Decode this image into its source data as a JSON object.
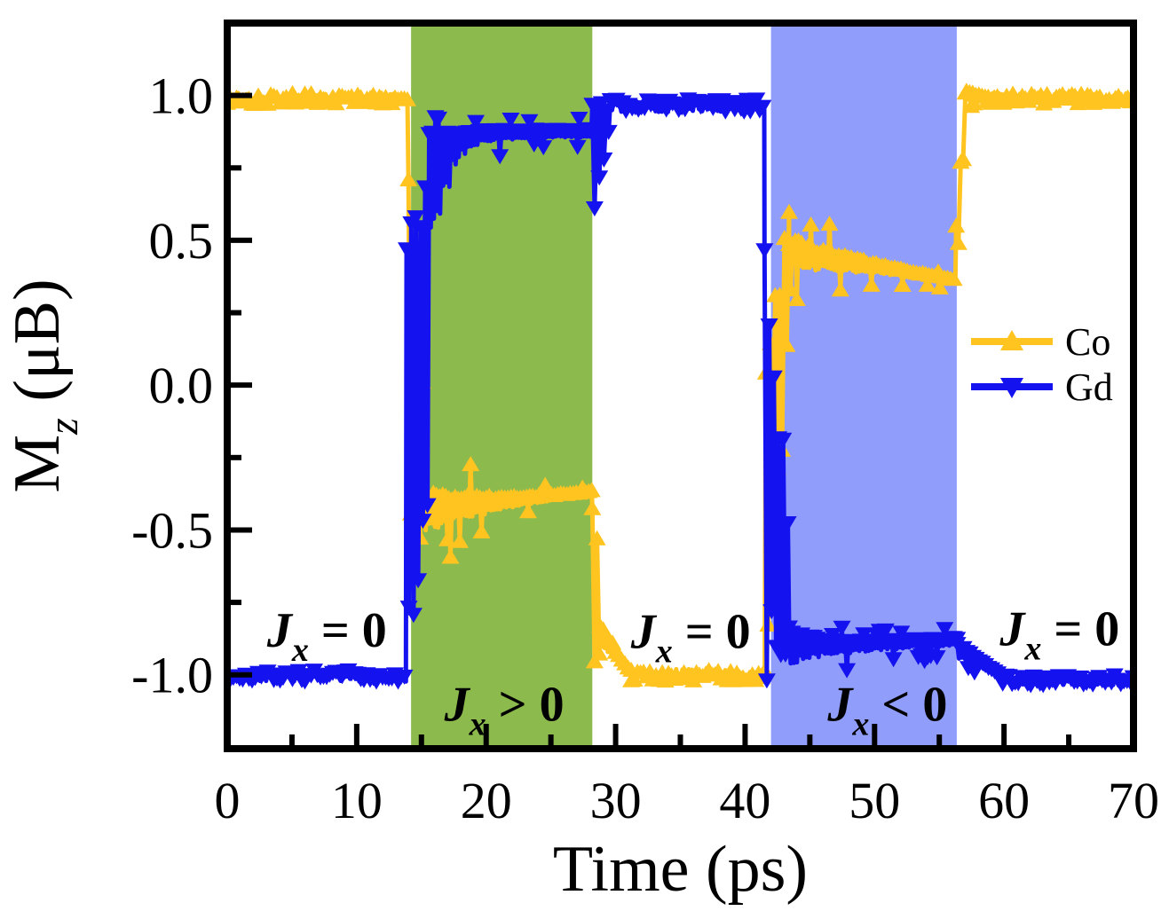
{
  "figure_name": "magnetization-vs-time-switching-plot",
  "chart_data": {
    "type": "line",
    "title": "",
    "xlabel": "Time (ps)",
    "ylabel": "Mz (uB)",
    "x_axis": {
      "range": [
        0,
        70
      ],
      "ticks": [
        0,
        10,
        20,
        30,
        40,
        50,
        60,
        70
      ],
      "tick_labels": [
        "0",
        "10",
        "20",
        "30",
        "40",
        "50",
        "60",
        "70"
      ],
      "minor_ticks": [
        5,
        15,
        25,
        35,
        45,
        55,
        65
      ],
      "title_parts": [
        {
          "text": "Time (ps)",
          "style": "plain"
        }
      ]
    },
    "y_axis": {
      "range": [
        -1.255,
        1.25
      ],
      "ticks": [
        -1.0,
        -0.5,
        0.0,
        0.5,
        1.0
      ],
      "tick_labels": [
        "-1.0",
        "-0.5",
        "0.0",
        "0.5",
        "1.0"
      ],
      "minor_ticks": [
        -0.75,
        -0.25,
        0.25,
        0.75
      ],
      "title_parts": [
        {
          "text": "M",
          "style": "plain"
        },
        {
          "text": "z",
          "style": "sub"
        },
        {
          "text": " (μB)",
          "style": "plain"
        }
      ]
    },
    "grid": false,
    "legend_position": "right-middle",
    "legend": {
      "entries": [
        {
          "label": "Co",
          "series": "Co"
        },
        {
          "label": "Gd",
          "series": "Gd"
        }
      ]
    },
    "regions": [
      {
        "name": "jx-positive-pulse",
        "t": [
          14.2,
          28.2
        ],
        "color": "#8CBA4D"
      },
      {
        "name": "jx-negative-pulse",
        "t": [
          42.0,
          56.35
        ],
        "color": "#909DFA"
      }
    ],
    "annotations": [
      {
        "name": "jx-zero-1",
        "t": 7.7,
        "v": -0.845,
        "parts": [
          {
            "text": "J",
            "style": "italic"
          },
          {
            "text": "x",
            "style": "sub"
          },
          {
            "text": " = 0",
            "style": "plain"
          }
        ]
      },
      {
        "name": "jx-positive-label",
        "t": 21.4,
        "v": -1.1,
        "parts": [
          {
            "text": "J",
            "style": "italic"
          },
          {
            "text": "x",
            "style": "sub"
          },
          {
            "text": " > 0",
            "style": "plain"
          }
        ]
      },
      {
        "name": "jx-zero-2",
        "t": 35.8,
        "v": -0.85,
        "parts": [
          {
            "text": "J",
            "style": "italic"
          },
          {
            "text": "x",
            "style": "sub"
          },
          {
            "text": " = 0",
            "style": "plain"
          }
        ]
      },
      {
        "name": "jx-negative-label",
        "t": 51.0,
        "v": -1.1,
        "parts": [
          {
            "text": "J",
            "style": "italic"
          },
          {
            "text": "x",
            "style": "sub"
          },
          {
            "text": " < 0",
            "style": "plain"
          }
        ]
      },
      {
        "name": "jx-zero-3",
        "t": 64.3,
        "v": -0.84,
        "parts": [
          {
            "text": "J",
            "style": "italic"
          },
          {
            "text": "x",
            "style": "sub"
          },
          {
            "text": " = 0",
            "style": "plain"
          }
        ]
      }
    ],
    "phases": [
      {
        "interval_ps": [
          0,
          14
        ],
        "current": "Jx = 0",
        "Co_plateau": 1.0,
        "Gd_plateau": -1.0
      },
      {
        "interval_ps": [
          14,
          28
        ],
        "current": "Jx > 0",
        "Co_plateau": -0.38,
        "Gd_plateau": 0.87
      },
      {
        "interval_ps": [
          28,
          42
        ],
        "current": "Jx = 0",
        "Co_plateau": -1.0,
        "Gd_plateau": 0.97
      },
      {
        "interval_ps": [
          42,
          56
        ],
        "current": "Jx < 0",
        "Co_plateau": 0.4,
        "Gd_plateau": -0.9
      },
      {
        "interval_ps": [
          56,
          70
        ],
        "current": "Jx = 0",
        "Co_plateau": 1.0,
        "Gd_plateau": -1.0
      }
    ],
    "series": [
      {
        "name": "Co",
        "color": "#FFC420",
        "marker": "triangle-up",
        "segments": [
          {
            "type": "flat",
            "t": [
              0,
              14.0
            ],
            "y": 0.99,
            "amp": 0.02
          },
          {
            "type": "chaos",
            "t": [
              14.0,
              15.2
            ],
            "hi": [
              1.0,
              -0.05
            ],
            "lo": [
              -0.62,
              -0.58
            ]
          },
          {
            "type": "decay",
            "t": [
              15.2,
              28.2
            ],
            "y": [
              -0.44,
              -0.37
            ],
            "up": [
              0.26,
              0.03
            ],
            "dn": [
              0.24,
              0.03
            ]
          },
          {
            "type": "chaos",
            "t": [
              28.2,
              28.8
            ],
            "hi": [
              -0.33,
              -0.6
            ],
            "lo": [
              -0.97,
              -0.95
            ]
          },
          {
            "type": "decay",
            "t": [
              28.8,
              31.2
            ],
            "y": [
              -0.88,
              -0.99
            ],
            "up": [
              0.3,
              0.03
            ],
            "dn": [
              0.08,
              0.02
            ]
          },
          {
            "type": "flat",
            "t": [
              31.2,
              41.6
            ],
            "y": -1.0,
            "amp": 0.02
          },
          {
            "type": "chaos",
            "t": [
              41.6,
              43.4
            ],
            "hi": [
              0.3,
              0.63
            ],
            "lo": [
              -1.02,
              0.1
            ]
          },
          {
            "type": "decay",
            "t": [
              43.4,
              56.3
            ],
            "y": [
              0.45,
              0.36
            ],
            "up": [
              0.22,
              0.03
            ],
            "dn": [
              0.2,
              0.03
            ]
          },
          {
            "type": "chaos",
            "t": [
              56.3,
              57.1
            ],
            "hi": [
              0.6,
              1.06
            ],
            "lo": [
              0.35,
              0.96
            ]
          },
          {
            "type": "decay",
            "t": [
              57.1,
              59.0
            ],
            "y": [
              1.0,
              0.99
            ],
            "up": [
              0.07,
              0.02
            ],
            "dn": [
              0.05,
              0.02
            ]
          },
          {
            "type": "flat",
            "t": [
              59.0,
              70
            ],
            "y": 0.99,
            "amp": 0.018
          }
        ]
      },
      {
        "name": "Gd",
        "color": "#1512F0",
        "marker": "triangle-down",
        "segments": [
          {
            "type": "flat",
            "t": [
              0,
              13.85
            ],
            "y": -1.005,
            "amp": 0.02
          },
          {
            "type": "chaos",
            "t": [
              13.85,
              15.6
            ],
            "hi": [
              0.5,
              0.95
            ],
            "lo": [
              -1.05,
              -0.45
            ]
          },
          {
            "type": "decay",
            "t": [
              15.6,
              19.5
            ],
            "y": [
              0.84,
              0.865
            ],
            "up": [
              0.12,
              0.05
            ],
            "dn": [
              1.45,
              0.12
            ]
          },
          {
            "type": "decay",
            "t": [
              19.5,
              28.2
            ],
            "y": [
              0.865,
              0.87
            ],
            "up": [
              0.055,
              0.05
            ],
            "dn": [
              0.09,
              0.05
            ]
          },
          {
            "type": "chaos",
            "t": [
              28.2,
              29.6
            ],
            "hi": [
              0.985,
              0.985
            ],
            "lo": [
              0.5,
              0.9
            ]
          },
          {
            "type": "flat",
            "t": [
              29.6,
              41.5
            ],
            "y": 0.965,
            "amp": 0.022
          },
          {
            "type": "chaos",
            "t": [
              41.5,
              43.4
            ],
            "hi": [
              0.65,
              -0.45
            ],
            "lo": [
              -1.12,
              -1.02
            ]
          },
          {
            "type": "decay",
            "t": [
              43.4,
              47.5
            ],
            "y": [
              -0.91,
              -0.9
            ],
            "up": [
              0.3,
              0.07
            ],
            "dn": [
              0.22,
              0.1
            ]
          },
          {
            "type": "decay",
            "t": [
              47.5,
              56.4
            ],
            "y": [
              -0.9,
              -0.885
            ],
            "up": [
              0.06,
              0.05
            ],
            "dn": [
              0.1,
              0.06
            ]
          },
          {
            "type": "decay",
            "t": [
              56.4,
              59.9
            ],
            "y": [
              -0.92,
              -1.01
            ],
            "up": [
              0.12,
              0.02
            ],
            "dn": [
              0.08,
              0.02
            ]
          },
          {
            "type": "flat",
            "t": [
              59.9,
              70
            ],
            "y": -1.02,
            "amp": 0.018
          }
        ]
      }
    ]
  }
}
